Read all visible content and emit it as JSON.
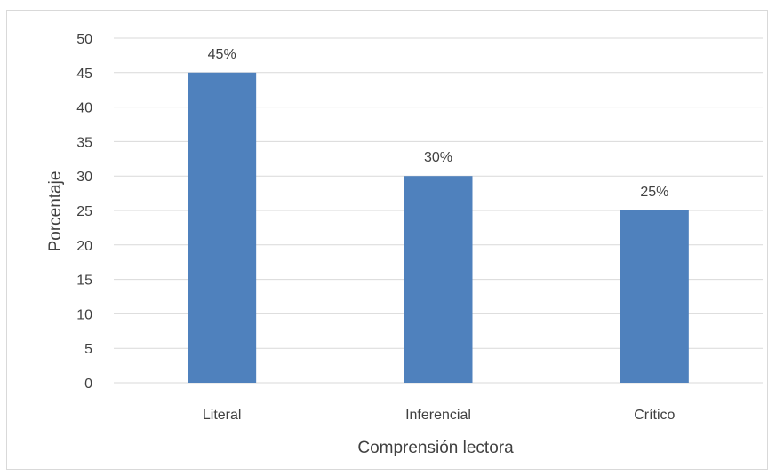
{
  "chart_data": {
    "type": "bar",
    "categories": [
      "Literal",
      "Inferencial",
      "Crítico"
    ],
    "values": [
      45,
      30,
      25
    ],
    "data_labels": [
      "45%",
      "30%",
      "25%"
    ],
    "xlabel": "Comprensión lectora",
    "ylabel": "Porcentaje",
    "ylim": [
      0,
      50
    ],
    "yticks": [
      0,
      5,
      10,
      15,
      20,
      25,
      30,
      35,
      40,
      45,
      50
    ],
    "grid": true,
    "bar_color": "#4f81bd",
    "grid_color": "#d9d9d9"
  }
}
